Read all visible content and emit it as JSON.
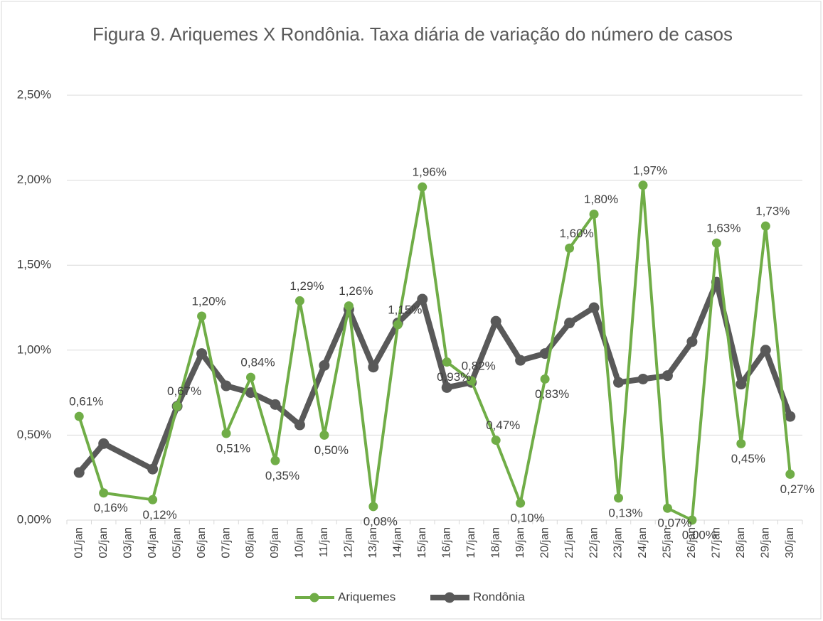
{
  "chart_data": {
    "type": "line",
    "title": "Figura 9. Ariquemes X Rondônia. Taxa diária de variação do número de casos",
    "categories": [
      "01/jan",
      "02/jan",
      "03/jan",
      "04/jan",
      "05/jan",
      "06/jan",
      "07/jan",
      "08/jan",
      "09/jan",
      "10/jan",
      "11/jan",
      "12/jan",
      "13/jan",
      "14/jan",
      "15/jan",
      "16/jan",
      "17/jan",
      "18/jan",
      "19/jan",
      "20/jan",
      "21/jan",
      "22/jan",
      "23/jan",
      "24/jan",
      "25/jan",
      "26/jan",
      "27/jan",
      "28/jan",
      "29/jan",
      "30/jan"
    ],
    "series": [
      {
        "name": "Ariquemes",
        "color": "#70ad47",
        "values": [
          0.61,
          0.16,
          null,
          0.12,
          0.67,
          1.2,
          0.51,
          0.84,
          0.35,
          1.29,
          0.5,
          1.26,
          0.08,
          1.15,
          1.96,
          0.93,
          0.82,
          0.47,
          0.1,
          0.83,
          1.6,
          1.8,
          0.13,
          1.97,
          0.07,
          0.0,
          1.63,
          0.45,
          1.73,
          0.27
        ],
        "value_labels": [
          "0,61%",
          "0,16%",
          null,
          "0,12%",
          "0,67%",
          "1,20%",
          "0,51%",
          "0,84%",
          "0,35%",
          "1,29%",
          "0,50%",
          "1,26%",
          "0,08%",
          "1,15%",
          "1,96%",
          "0,93%",
          "0,82%",
          "0,47%",
          "0,10%",
          "0,83%",
          "1,60%",
          "1,80%",
          "0,13%",
          "1,97%",
          "0,07%",
          "0,00%",
          "1,63%",
          "0,45%",
          "1,73%",
          "0,27%"
        ]
      },
      {
        "name": "Rondônia",
        "color": "#595959",
        "values": [
          0.28,
          0.45,
          null,
          0.3,
          0.67,
          0.98,
          0.79,
          0.75,
          0.68,
          0.56,
          0.91,
          1.24,
          0.9,
          1.16,
          1.3,
          0.78,
          0.81,
          1.17,
          0.94,
          0.98,
          1.16,
          1.25,
          0.81,
          0.83,
          0.85,
          1.05,
          1.4,
          0.8,
          1.0,
          0.61
        ]
      }
    ],
    "ylim": [
      0,
      2.5
    ],
    "yticks": [
      {
        "value": 0,
        "label": "0,00%"
      },
      {
        "value": 0.5,
        "label": "0,50%"
      },
      {
        "value": 1,
        "label": "1,00%"
      },
      {
        "value": 1.5,
        "label": "1,50%"
      },
      {
        "value": 2,
        "label": "2,00%"
      },
      {
        "value": 2.5,
        "label": "2,50%"
      }
    ],
    "grid": true,
    "span_gaps": true,
    "legend": "bottom"
  }
}
